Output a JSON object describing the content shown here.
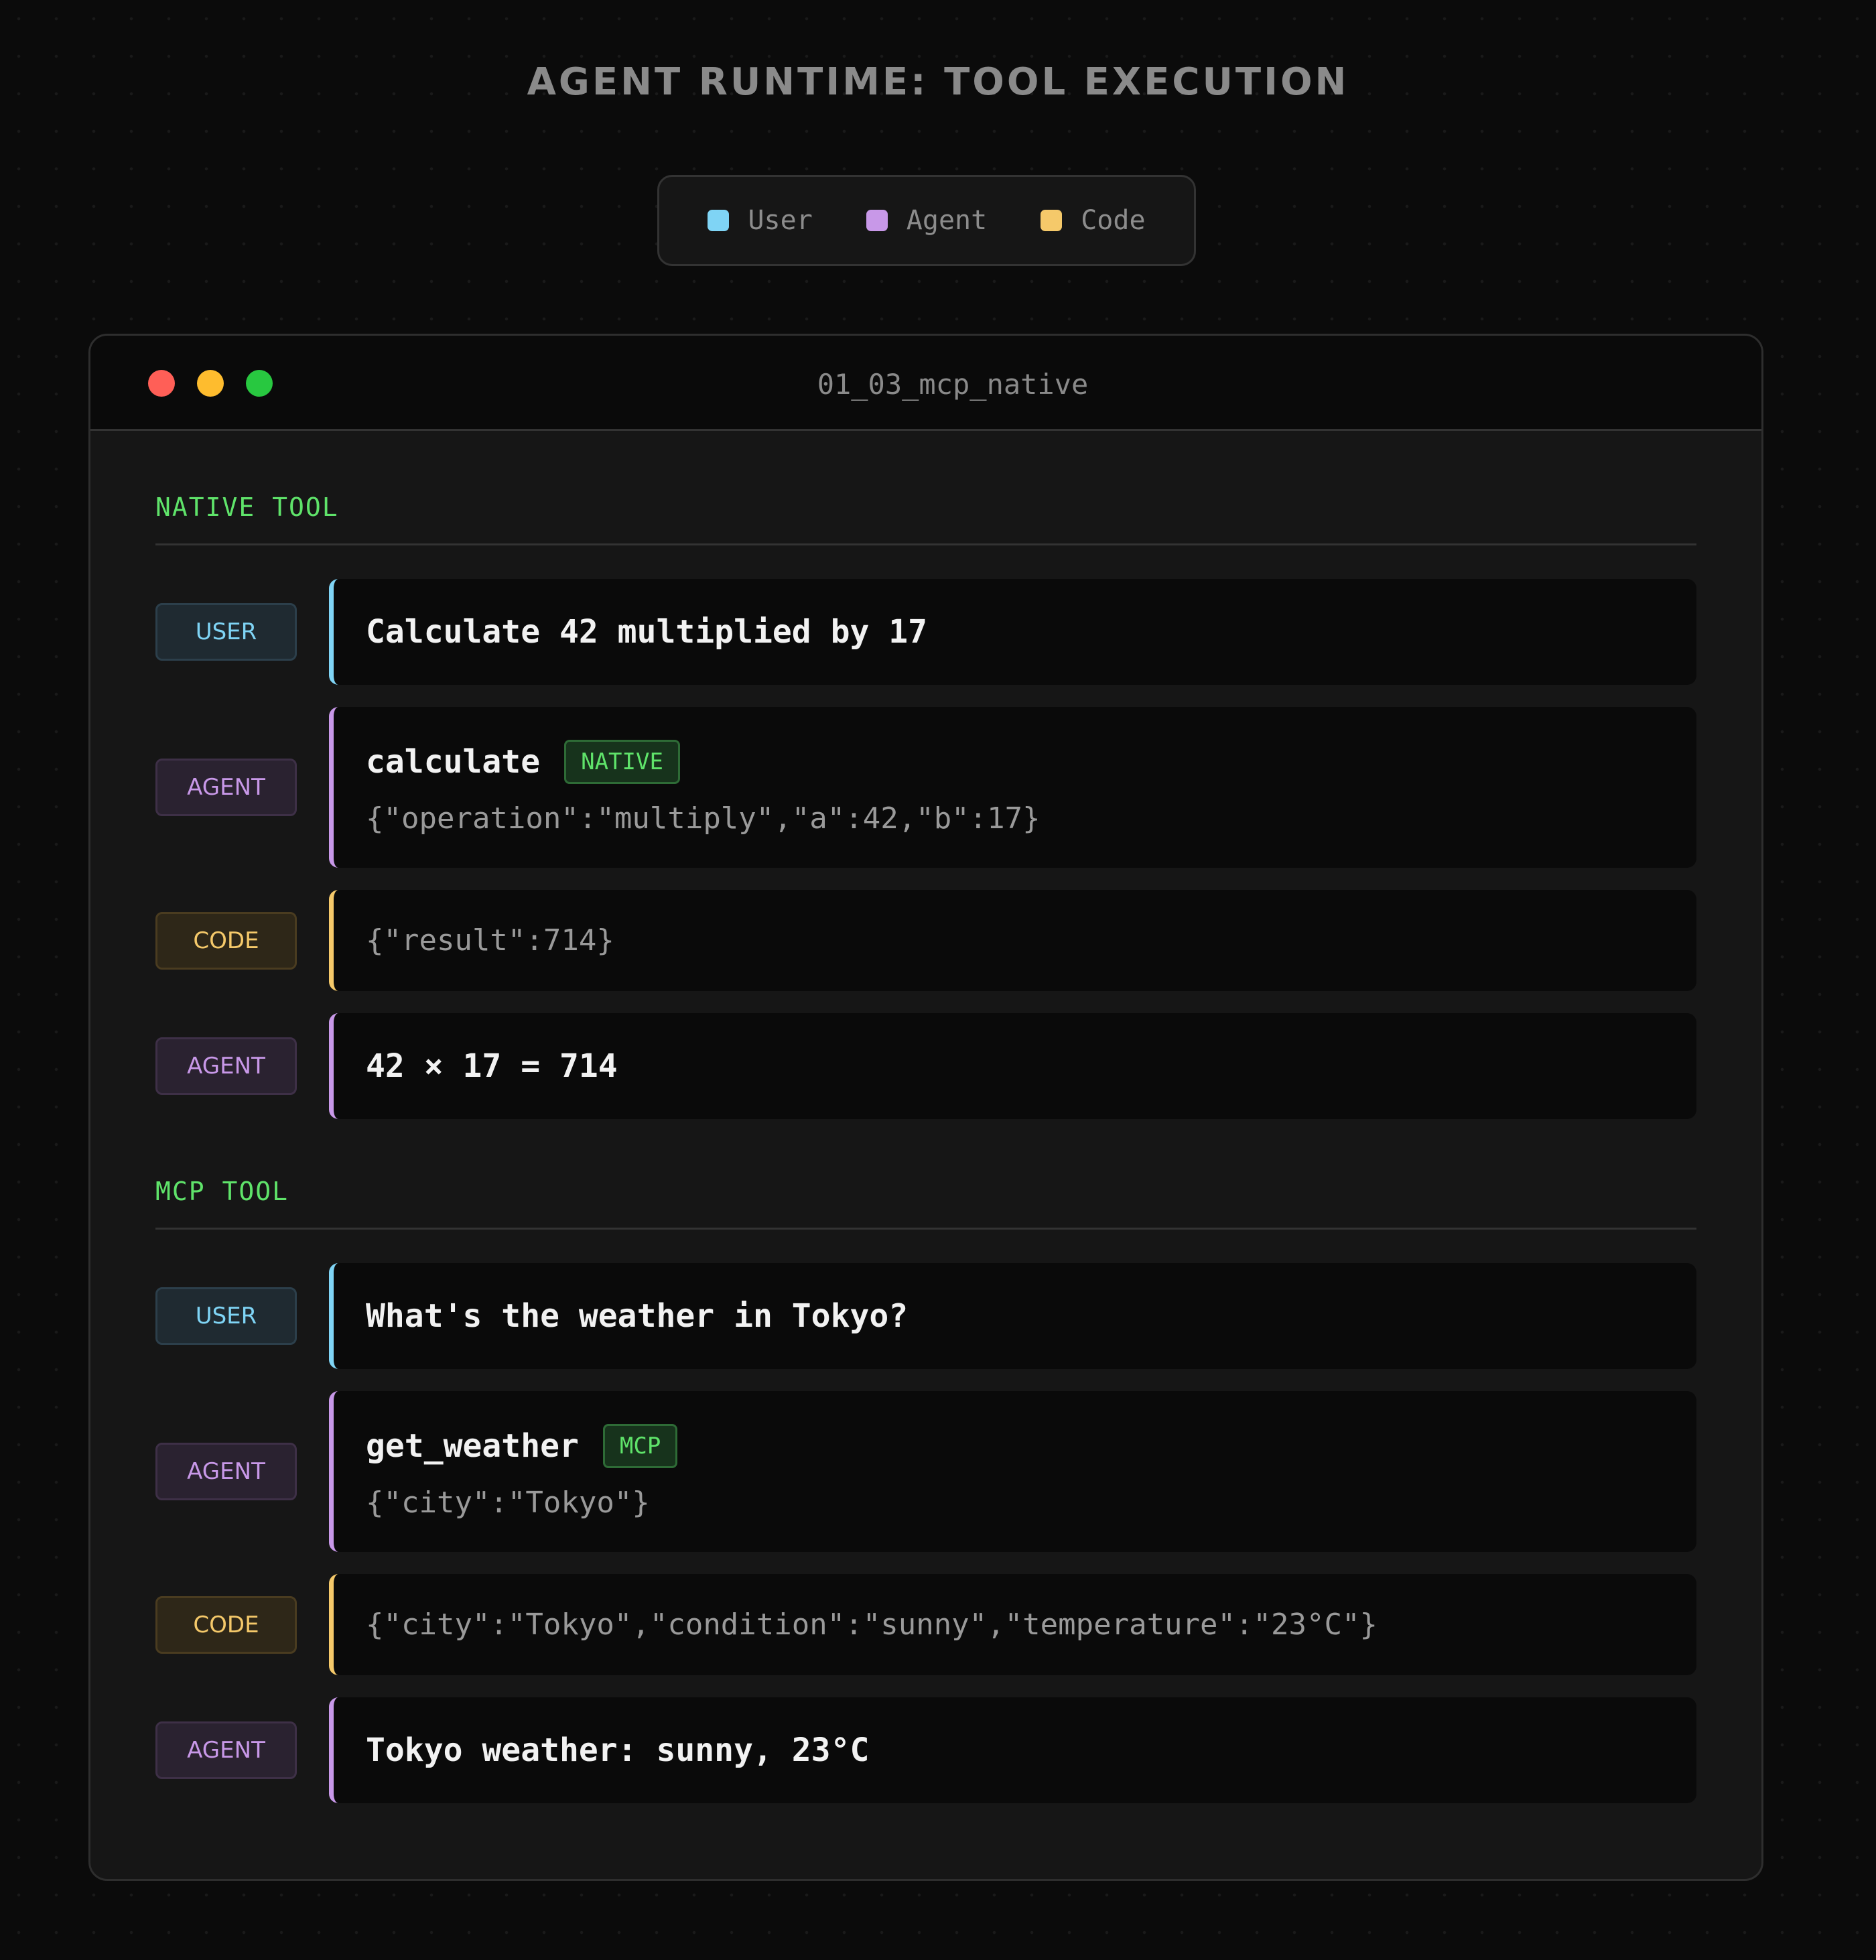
{
  "title": "AGENT RUNTIME: TOOL EXECUTION",
  "legend": [
    {
      "label": "User",
      "color": "#7fd4f5"
    },
    {
      "label": "Agent",
      "color": "#c898e8"
    },
    {
      "label": "Code",
      "color": "#f5c96a"
    }
  ],
  "window": {
    "title": "01_03_mcp_native",
    "dots": [
      "#ff5f57",
      "#febc2e",
      "#28c840"
    ]
  },
  "sections": [
    {
      "heading": "NATIVE TOOL",
      "rows": [
        {
          "role": "USER",
          "text": "Calculate 42 multiplied by 17"
        },
        {
          "role": "AGENT",
          "tool": "calculate",
          "badge": "NATIVE",
          "args": "{\"operation\":\"multiply\",\"a\":42,\"b\":17}"
        },
        {
          "role": "CODE",
          "json": "{\"result\":714}"
        },
        {
          "role": "AGENT",
          "text": "42 × 17 = 714"
        }
      ]
    },
    {
      "heading": "MCP TOOL",
      "rows": [
        {
          "role": "USER",
          "text": "What's the weather in Tokyo?"
        },
        {
          "role": "AGENT",
          "tool": "get_weather",
          "badge": "MCP",
          "args": "{\"city\":\"Tokyo\"}"
        },
        {
          "role": "CODE",
          "json": "{\"city\":\"Tokyo\",\"condition\":\"sunny\",\"temperature\":\"23°C\"}"
        },
        {
          "role": "AGENT",
          "text": "Tokyo weather: sunny, 23°C"
        }
      ]
    }
  ]
}
